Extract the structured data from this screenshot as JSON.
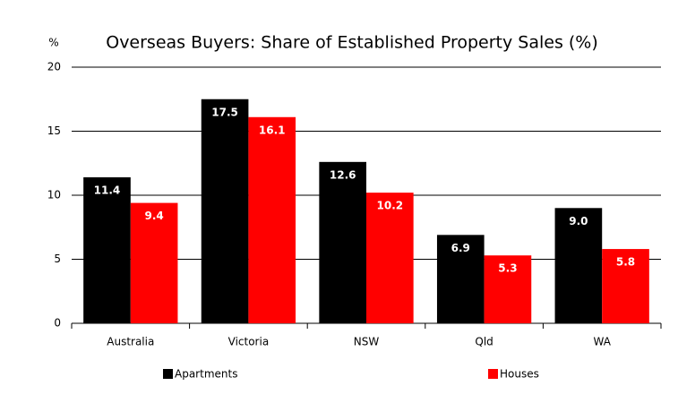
{
  "chart_data": {
    "type": "bar",
    "title": "Overseas Buyers: Share of Established Property Sales (%)",
    "y_label": "%",
    "categories": [
      "Australia",
      "Victoria",
      "NSW",
      "Qld",
      "WA"
    ],
    "series": [
      {
        "name": "Apartments",
        "color": "#000000",
        "values": [
          11.4,
          17.5,
          12.6,
          6.9,
          9.0
        ],
        "value_labels": [
          "11.4",
          "17.5",
          "12.6",
          "6.9",
          "9.0"
        ]
      },
      {
        "name": "Houses",
        "color": "#ff0000",
        "values": [
          9.4,
          16.1,
          10.2,
          5.3,
          5.8
        ]
      }
    ],
    "ylim": [
      0,
      20
    ],
    "yticks": [
      0,
      5,
      10,
      15,
      20
    ],
    "grid": true,
    "legend": "bottom"
  }
}
